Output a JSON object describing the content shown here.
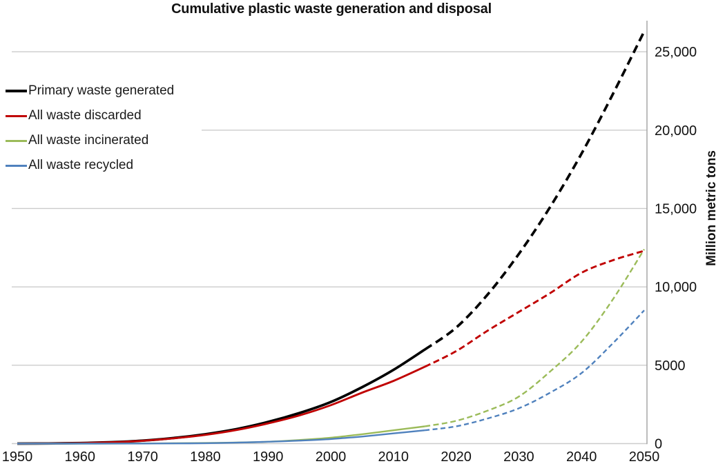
{
  "chart_data": {
    "type": "line",
    "title": "Cumulative plastic waste generation and disposal",
    "ylabel": "Million metric tons",
    "xlabel": "",
    "xlim": [
      1950,
      2050
    ],
    "ylim": [
      0,
      27000
    ],
    "grid": true,
    "legend_position": "top-left",
    "x_ticks": [
      "1950",
      "1960",
      "1970",
      "1980",
      "1990",
      "2000",
      "2010",
      "2020",
      "2030",
      "2040",
      "2050"
    ],
    "y_ticks": [
      {
        "value": 0,
        "label": "0"
      },
      {
        "value": 5000,
        "label": "5000"
      },
      {
        "value": 10000,
        "label": "10,000"
      },
      {
        "value": 15000,
        "label": "15,000"
      },
      {
        "value": 20000,
        "label": "20,000"
      },
      {
        "value": 25000,
        "label": "25,000"
      }
    ],
    "x": [
      1950,
      1955,
      1960,
      1965,
      1970,
      1975,
      1980,
      1985,
      1990,
      1995,
      2000,
      2005,
      2010,
      2015,
      2020,
      2025,
      2030,
      2035,
      2040,
      2045,
      2050
    ],
    "solid_until_year": 2015,
    "series": [
      {
        "name": "Primary waste generated",
        "color": "#000000",
        "line_style": "solid-then-dashed",
        "values": [
          2,
          10,
          35,
          90,
          190,
          360,
          600,
          930,
          1380,
          1950,
          2650,
          3600,
          4700,
          6000,
          7400,
          9500,
          12100,
          15100,
          18500,
          22300,
          26300
        ]
      },
      {
        "name": "All waste discarded",
        "color": "#c00000",
        "line_style": "solid-then-dashed",
        "values": [
          2,
          9,
          32,
          85,
          180,
          340,
          560,
          870,
          1290,
          1800,
          2450,
          3250,
          4000,
          4900,
          5900,
          7200,
          8400,
          9600,
          10900,
          11700,
          12300
        ]
      },
      {
        "name": "All waste incinerated",
        "color": "#9bbb59",
        "line_style": "solid-then-dashed",
        "values": [
          0,
          0,
          2,
          5,
          10,
          20,
          40,
          70,
          120,
          230,
          380,
          600,
          850,
          1100,
          1450,
          2100,
          3000,
          4600,
          6500,
          9200,
          12400
        ]
      },
      {
        "name": "All waste recycled",
        "color": "#4f81bd",
        "line_style": "solid-then-dashed",
        "values": [
          0,
          0,
          1,
          3,
          6,
          12,
          25,
          60,
          120,
          190,
          290,
          450,
          650,
          850,
          1100,
          1600,
          2250,
          3250,
          4500,
          6400,
          8500
        ]
      }
    ],
    "grid_color": "#cbcbcb",
    "axis_color": "#a6a6a6"
  }
}
